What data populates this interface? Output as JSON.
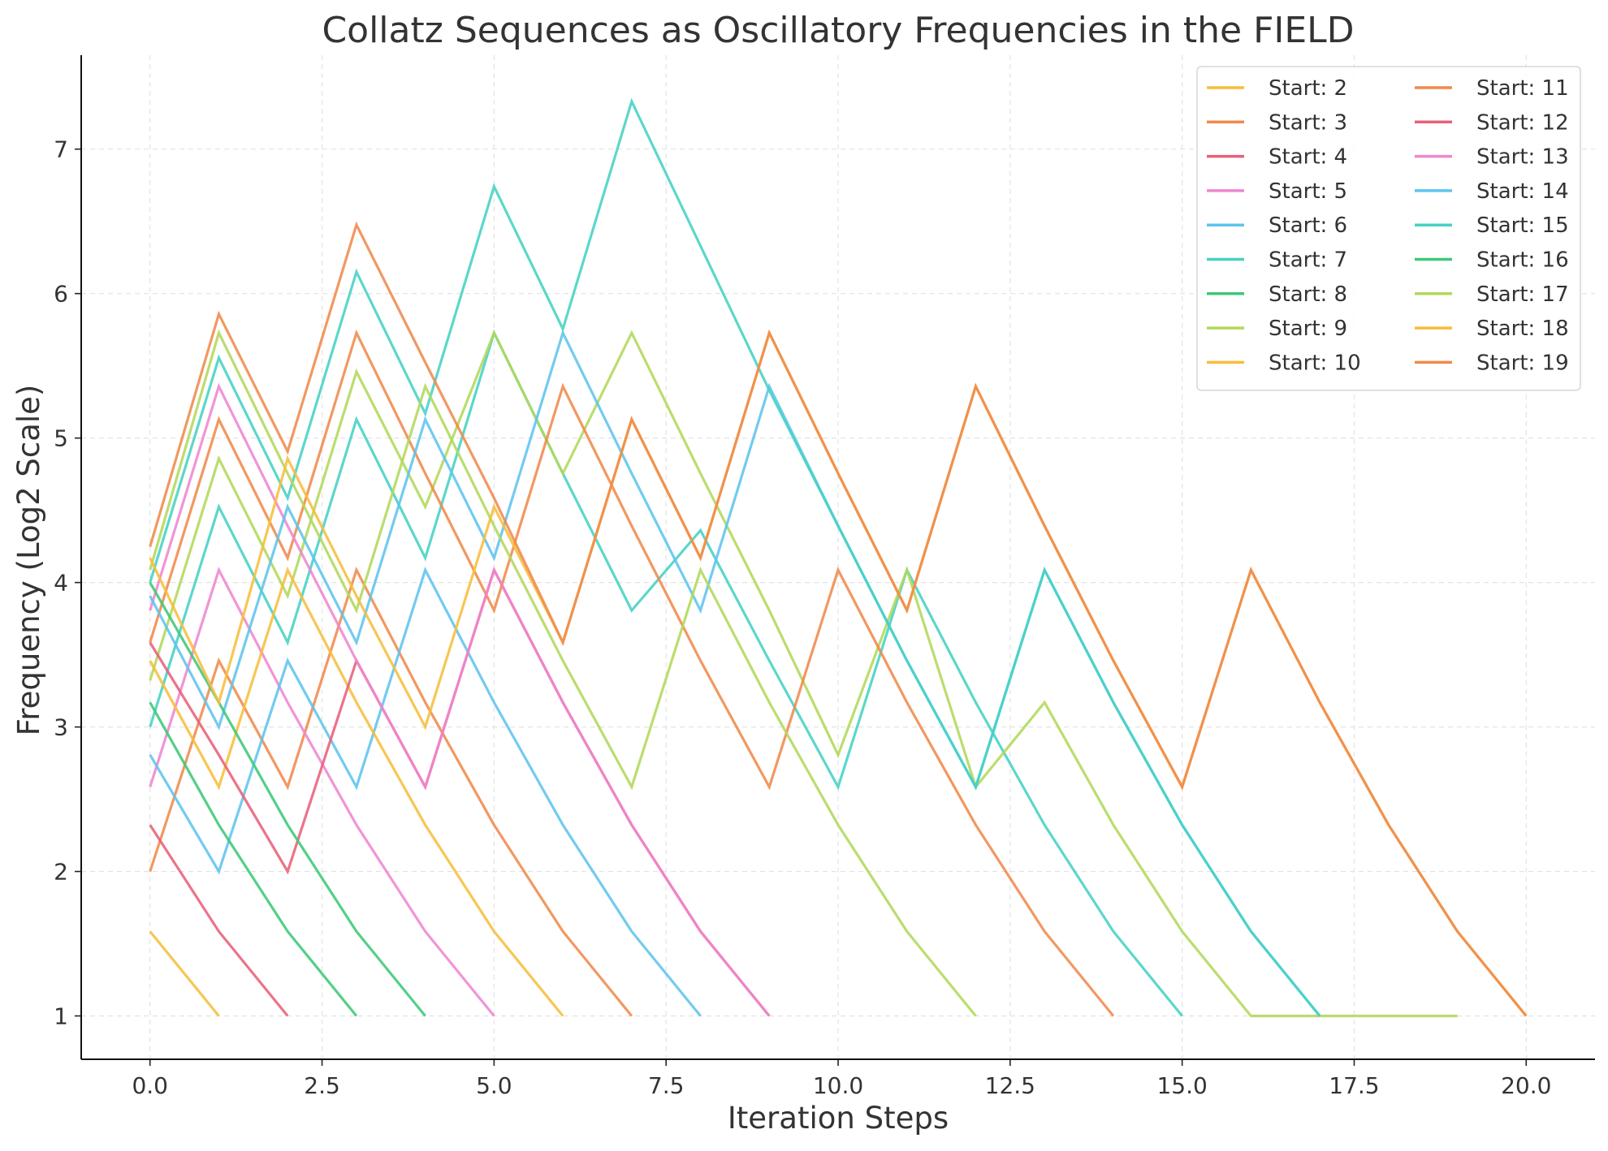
{
  "chart_data": {
    "type": "line",
    "title": "Collatz Sequences as Oscillatory Frequencies in the FIELD",
    "xlabel": "Iteration Steps",
    "ylabel": "Frequency (Log2 Scale)",
    "xlim": [
      -1.0,
      21.0
    ],
    "ylim": [
      0.7,
      7.65
    ],
    "xticks": [
      0.0,
      2.5,
      5.0,
      7.5,
      10.0,
      12.5,
      15.0,
      17.5,
      20.0
    ],
    "xtick_labels": [
      "0.0",
      "2.5",
      "5.0",
      "7.5",
      "10.0",
      "12.5",
      "15.0",
      "17.5",
      "20.0"
    ],
    "yticks": [
      1,
      2,
      3,
      4,
      5,
      6,
      7
    ],
    "ytick_labels": [
      "1",
      "2",
      "3",
      "4",
      "5",
      "6",
      "7"
    ],
    "grid": true,
    "legend_placement": "top-right",
    "legend_columns": 2,
    "series": [
      {
        "name": "Start: 2",
        "color": "#f6be3c",
        "values": [
          1.585,
          1.0
        ]
      },
      {
        "name": "Start: 3",
        "color": "#f08a4b",
        "values": [
          2.0,
          3.459,
          2.585,
          4.087,
          3.17,
          2.322,
          1.585,
          1.0
        ]
      },
      {
        "name": "Start: 4",
        "color": "#e8607a",
        "values": [
          2.322,
          1.585,
          1.0
        ]
      },
      {
        "name": "Start: 5",
        "color": "#ef86d0",
        "values": [
          2.585,
          4.087,
          3.17,
          2.322,
          1.585,
          1.0
        ]
      },
      {
        "name": "Start: 6",
        "color": "#5ec4ee",
        "values": [
          2.807,
          2.0,
          3.459,
          2.585,
          4.087,
          3.17,
          2.322,
          1.585,
          1.0
        ]
      },
      {
        "name": "Start: 7",
        "color": "#45d2c4",
        "values": [
          3.0,
          4.524,
          3.585,
          5.129,
          4.17,
          5.728,
          4.755,
          3.807,
          4.361,
          3.459,
          2.585,
          4.087,
          3.17,
          2.322,
          1.585,
          1.0
        ]
      },
      {
        "name": "Start: 8",
        "color": "#3ec878",
        "values": [
          3.17,
          2.322,
          1.585,
          1.0
        ]
      },
      {
        "name": "Start: 9",
        "color": "#b2d85a",
        "values": [
          3.322,
          4.858,
          3.907,
          5.459,
          4.524,
          5.728,
          4.755,
          5.728,
          4.755,
          3.807,
          2.807,
          4.087,
          2.585,
          3.17,
          2.322,
          1.585,
          1.0,
          1.0,
          1.0,
          1.0
        ]
      },
      {
        "name": "Start: 10",
        "color": "#f6be3c",
        "values": [
          3.459,
          2.585,
          4.087,
          3.17,
          2.322,
          1.585,
          1.0
        ]
      },
      {
        "name": "Start: 11",
        "color": "#f08a4b",
        "values": [
          3.585,
          5.129,
          4.17,
          5.728,
          4.755,
          3.807,
          5.358,
          4.392,
          3.459,
          2.585,
          4.087,
          3.17,
          2.322,
          1.585,
          1.0
        ]
      },
      {
        "name": "Start: 12",
        "color": "#e8607a",
        "values": [
          3.585,
          2.807,
          2.0,
          3.459,
          2.585,
          4.087,
          3.17,
          2.322,
          1.585,
          1.0
        ]
      },
      {
        "name": "Start: 13",
        "color": "#ef86d0",
        "values": [
          3.807,
          5.358,
          4.392,
          3.459,
          2.585,
          4.087,
          3.17,
          2.322,
          1.585,
          1.0
        ]
      },
      {
        "name": "Start: 14",
        "color": "#5ec4ee",
        "values": [
          3.907,
          3.0,
          4.524,
          3.585,
          5.129,
          4.17,
          5.728,
          4.755,
          3.807,
          5.358,
          4.392,
          3.459,
          2.585,
          4.087,
          3.17,
          2.322,
          1.585,
          1.0
        ]
      },
      {
        "name": "Start: 15",
        "color": "#45d2c4",
        "values": [
          4.0,
          5.555,
          4.585,
          6.15,
          5.17,
          6.741,
          5.755,
          7.33,
          6.33,
          5.33,
          4.392,
          3.459,
          2.585,
          4.087,
          3.17,
          2.322,
          1.585,
          1.0
        ]
      },
      {
        "name": "Start: 16",
        "color": "#3ec878",
        "values": [
          4.0,
          3.17,
          2.322,
          1.585,
          1.0
        ]
      },
      {
        "name": "Start: 17",
        "color": "#b2d85a",
        "values": [
          4.087,
          5.728,
          4.755,
          3.807,
          5.358,
          4.392,
          3.459,
          2.585,
          4.087,
          3.17,
          2.322,
          1.585,
          1.0
        ]
      },
      {
        "name": "Start: 18",
        "color": "#f6be3c",
        "values": [
          4.17,
          3.17,
          4.858,
          3.907,
          3.0,
          4.524,
          3.585,
          5.129,
          4.17,
          5.728,
          4.755,
          3.807,
          5.358,
          4.392,
          3.459,
          2.585,
          4.087,
          3.17,
          2.322,
          1.585,
          1.0
        ]
      },
      {
        "name": "Start: 19",
        "color": "#f08a4b",
        "values": [
          4.248,
          5.858,
          4.907,
          6.476,
          5.524,
          4.585,
          3.585,
          5.129,
          4.17,
          5.728,
          4.755,
          3.807,
          5.358,
          4.392,
          3.459,
          2.585,
          4.087,
          3.17,
          2.322,
          1.585,
          1.0
        ]
      }
    ]
  }
}
